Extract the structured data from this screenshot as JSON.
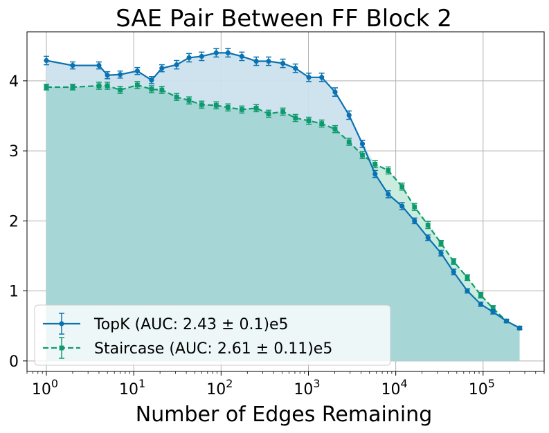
{
  "chart_data": {
    "type": "line",
    "title": "SAE Pair Between FF Block 2",
    "xlabel": "Number of Edges Remaining",
    "ylabel": "",
    "xscale": "log",
    "xlim": [
      0.6,
      500000
    ],
    "ylim": [
      -0.15,
      4.7
    ],
    "grid": true,
    "legend_position": "lower-left",
    "x_ticks": [
      {
        "value": 1,
        "base": "10",
        "exp": "0"
      },
      {
        "value": 10,
        "base": "10",
        "exp": "1"
      },
      {
        "value": 100,
        "base": "10",
        "exp": "2"
      },
      {
        "value": 1000,
        "base": "10",
        "exp": "3"
      },
      {
        "value": 10000,
        "base": "10",
        "exp": "4"
      },
      {
        "value": 100000,
        "base": "10",
        "exp": "5"
      }
    ],
    "y_ticks": [
      {
        "value": 0,
        "label": "0"
      },
      {
        "value": 1,
        "label": "1"
      },
      {
        "value": 2,
        "label": "2"
      },
      {
        "value": 3,
        "label": "3"
      },
      {
        "value": 4,
        "label": "4"
      }
    ],
    "series": [
      {
        "name": "TopK (AUC: 2.43 ± 0.1)e5",
        "color": "#1f77b4",
        "line_color": "#0a72b0",
        "fill_color": "#cce2ee",
        "marker": "circle",
        "linestyle": "solid",
        "x": [
          1,
          2,
          4,
          5,
          7,
          11,
          16,
          21,
          31,
          43,
          60,
          88,
          120,
          173,
          253,
          350,
          510,
          710,
          1010,
          1420,
          2020,
          2920,
          4150,
          5800,
          8200,
          11800,
          16400,
          23400,
          33000,
          46000,
          66000,
          94000,
          130000,
          185000,
          262000
        ],
        "y": [
          4.29,
          4.22,
          4.22,
          4.08,
          4.09,
          4.14,
          4.01,
          4.18,
          4.23,
          4.33,
          4.35,
          4.4,
          4.4,
          4.35,
          4.28,
          4.28,
          4.25,
          4.18,
          4.05,
          4.05,
          3.84,
          3.51,
          3.1,
          2.67,
          2.38,
          2.21,
          2.0,
          1.76,
          1.54,
          1.27,
          1.0,
          0.81,
          0.7,
          0.57,
          0.47
        ],
        "err": [
          0.06,
          0.05,
          0.05,
          0.05,
          0.05,
          0.05,
          0.05,
          0.05,
          0.06,
          0.06,
          0.06,
          0.06,
          0.06,
          0.06,
          0.06,
          0.06,
          0.06,
          0.06,
          0.06,
          0.06,
          0.06,
          0.06,
          0.05,
          0.05,
          0.05,
          0.05,
          0.04,
          0.04,
          0.04,
          0.04,
          0.03,
          0.03,
          0.03,
          0.02,
          0.02
        ]
      },
      {
        "name": "Staircase (AUC: 2.61 ± 0.11)e5",
        "color": "#009966",
        "line_color": "#0f9a6e",
        "fill_color": "#a6d6d6",
        "marker": "square",
        "linestyle": "dashed",
        "x": [
          1,
          2,
          4,
          5,
          7,
          11,
          16,
          21,
          31,
          43,
          60,
          88,
          120,
          173,
          253,
          350,
          510,
          710,
          1010,
          1420,
          2020,
          2920,
          4150,
          5800,
          8200,
          11800,
          16400,
          23400,
          33000,
          46000,
          66000,
          94000,
          130000,
          185000,
          262000
        ],
        "y": [
          3.91,
          3.91,
          3.93,
          3.93,
          3.87,
          3.94,
          3.88,
          3.87,
          3.77,
          3.72,
          3.66,
          3.65,
          3.62,
          3.59,
          3.61,
          3.53,
          3.56,
          3.47,
          3.43,
          3.39,
          3.31,
          3.13,
          2.94,
          2.81,
          2.72,
          2.49,
          2.2,
          1.94,
          1.68,
          1.42,
          1.19,
          0.94,
          0.75,
          0.57,
          0.47
        ],
        "err": [
          0.04,
          0.04,
          0.05,
          0.05,
          0.05,
          0.05,
          0.05,
          0.05,
          0.05,
          0.05,
          0.05,
          0.05,
          0.05,
          0.05,
          0.05,
          0.05,
          0.05,
          0.05,
          0.05,
          0.05,
          0.05,
          0.05,
          0.05,
          0.05,
          0.05,
          0.05,
          0.05,
          0.05,
          0.04,
          0.04,
          0.04,
          0.04,
          0.04,
          0.02,
          0.02
        ]
      }
    ]
  }
}
